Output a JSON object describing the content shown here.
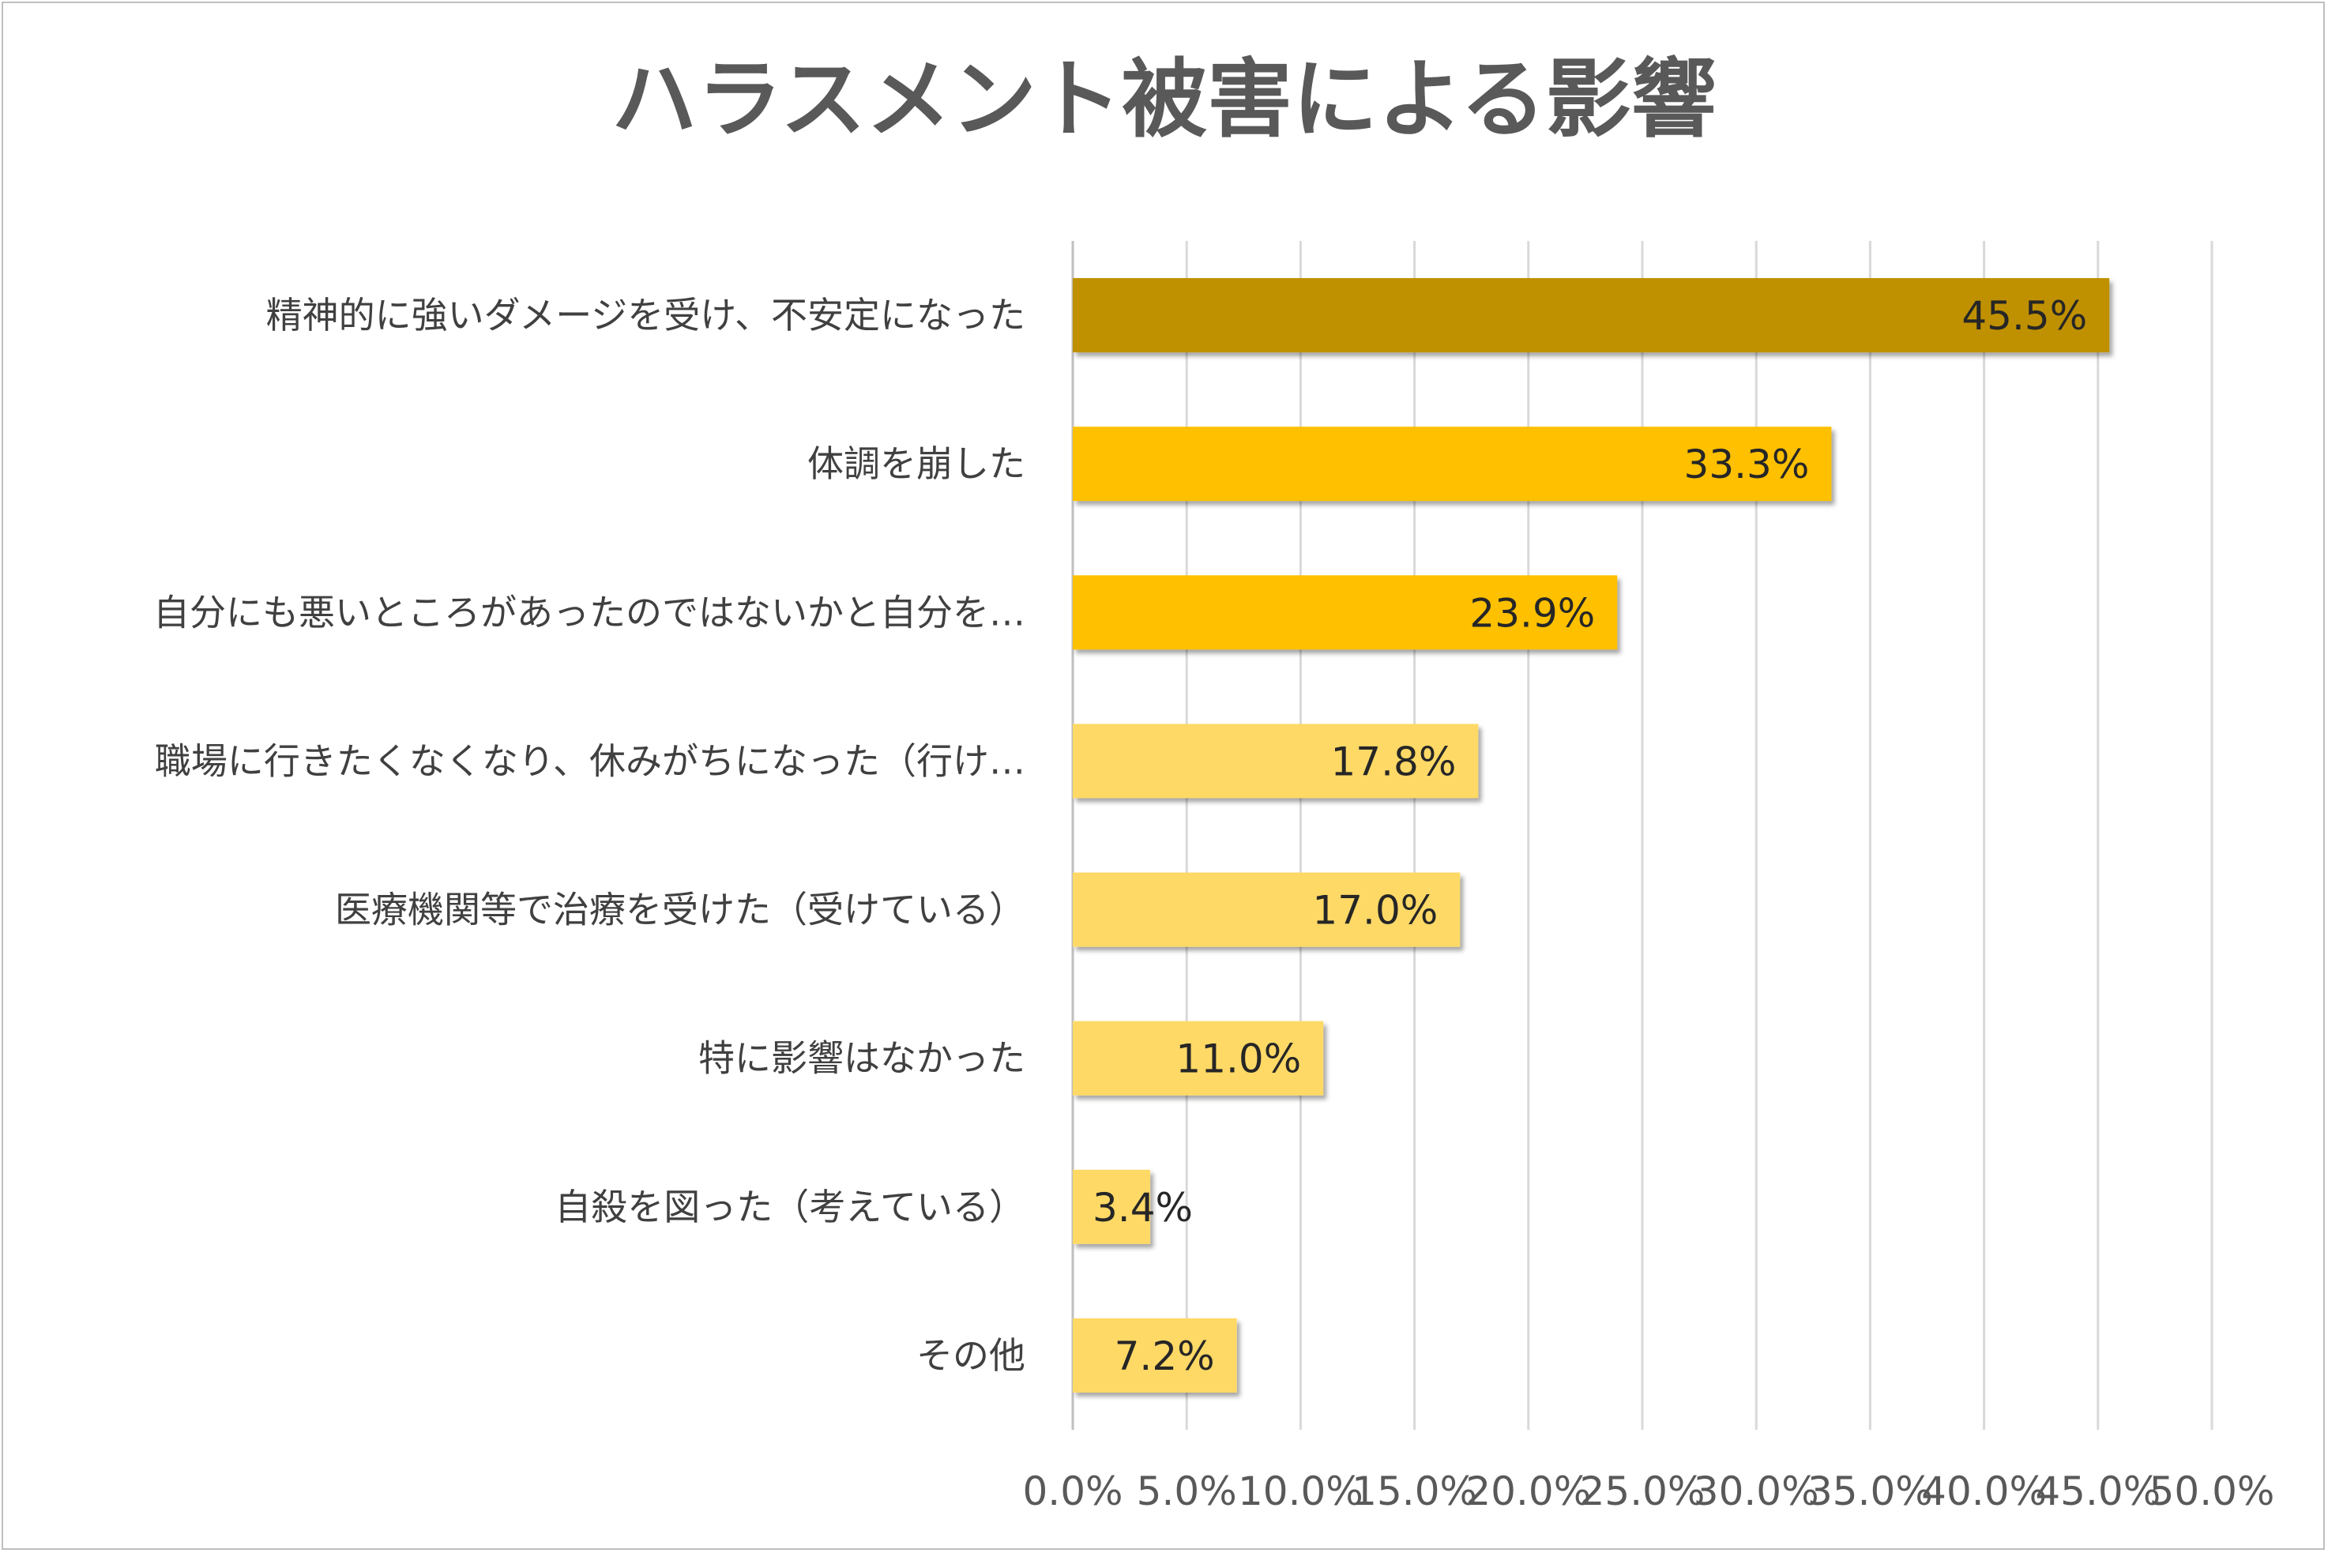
{
  "chart_data": {
    "type": "bar",
    "orientation": "horizontal",
    "title": "ハラスメント被害による影響",
    "categories": [
      "精神的に強いダメージを受け、不安定になった",
      "体調を崩した",
      "自分にも悪いところがあったのではないかと自分を…",
      "職場に行きたくなくなり、休みがちになった（行け…",
      "医療機関等で治療を受けた（受けている）",
      "特に影響はなかった",
      "自殺を図った（考えている）",
      "その他"
    ],
    "values": [
      45.5,
      33.3,
      23.9,
      17.8,
      17.0,
      11.0,
      3.4,
      7.2
    ],
    "value_labels": [
      "45.5%",
      "33.3%",
      "23.9%",
      "17.8%",
      "17.0%",
      "11.0%",
      "3.4%",
      "7.2%"
    ],
    "bar_colors": [
      "#bf9000",
      "#ffc000",
      "#ffc000",
      "#ffd966",
      "#ffd966",
      "#ffd966",
      "#ffd966",
      "#ffd966"
    ],
    "xlim": [
      0,
      50
    ],
    "x_ticks": [
      0,
      5,
      10,
      15,
      20,
      25,
      30,
      35,
      40,
      45,
      50
    ],
    "x_tick_labels": [
      "0.0%",
      "5.0%",
      "10.0%",
      "15.0%",
      "20.0%",
      "25.0%",
      "30.0%",
      "35.0%",
      "40.0%",
      "45.0%",
      "50.0%"
    ],
    "grid": true,
    "xlabel": "",
    "ylabel": ""
  },
  "colors": {
    "grid": "#d9d9d9",
    "axis": "#bfbfbf",
    "title": "#595959"
  }
}
